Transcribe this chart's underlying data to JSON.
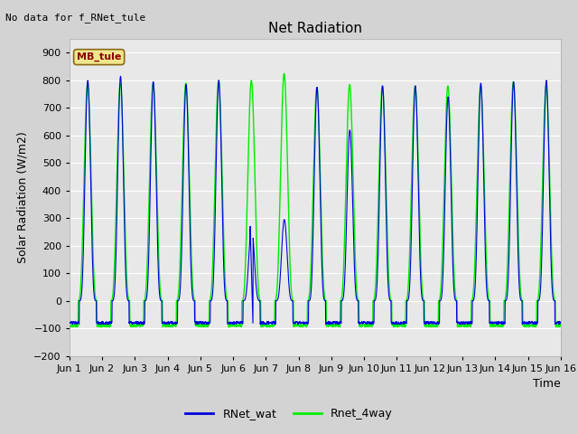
{
  "title": "Net Radiation",
  "ylabel": "Solar Radiation (W/m2)",
  "xlabel": "Time",
  "top_note": "No data for f_RNet_tule",
  "legend_label": "MB_tule",
  "ylim": [
    -200,
    950
  ],
  "yticks": [
    -200,
    -100,
    0,
    100,
    200,
    300,
    400,
    500,
    600,
    700,
    800,
    900
  ],
  "xlim_days": 15,
  "num_days": 15,
  "line1_color": "#0000dd",
  "line2_color": "#00ee00",
  "fig_bg_color": "#d3d3d3",
  "plot_bg_color": "#e8e8e8",
  "line1_label": "RNet_wat",
  "line2_label": "Rnet_4way",
  "x_tick_labels": [
    "Jun 1",
    "Jun 2",
    "Jun 3",
    "Jun 4",
    "Jun 5",
    "Jun 6",
    "Jun 7",
    "Jun 8",
    "Jun 9",
    "Jun 10",
    "Jun 11",
    "Jun 12",
    "Jun 13",
    "Jun 14",
    "Jun 15",
    "Jun 16"
  ],
  "day_peaks_blue": [
    800,
    815,
    795,
    785,
    800,
    270,
    295,
    775,
    620,
    780,
    780,
    740,
    790,
    795,
    800
  ],
  "day_peaks_green": [
    790,
    790,
    790,
    790,
    800,
    800,
    825,
    775,
    785,
    780,
    780,
    780,
    780,
    795,
    780
  ],
  "night_val_blue": -80,
  "night_val_green": -90,
  "samples_per_hour": 6
}
